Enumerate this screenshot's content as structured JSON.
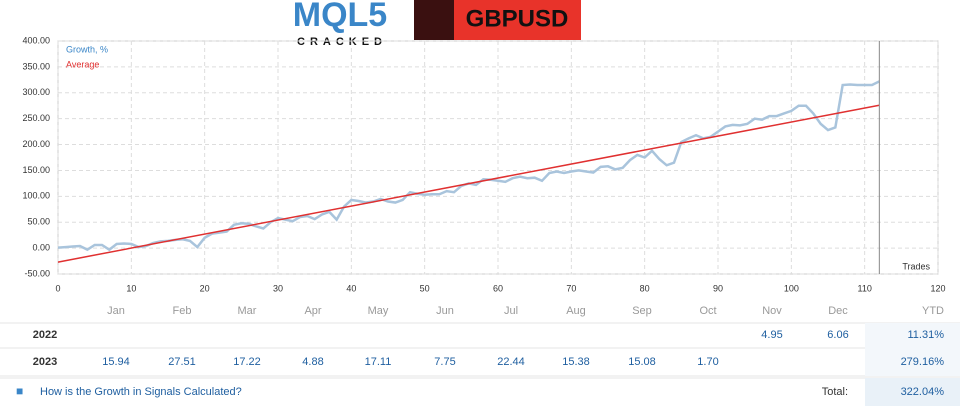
{
  "header": {
    "logo": "MQL5",
    "logo_sub": "CRACKED",
    "symbol": "GBPUSD"
  },
  "chart_data": {
    "type": "line",
    "x_label": "Trades",
    "x": [
      0,
      1,
      2,
      3,
      4,
      5,
      6,
      7,
      8,
      9,
      10,
      11,
      12,
      13,
      14,
      15,
      16,
      17,
      18,
      19,
      20,
      21,
      22,
      23,
      24,
      25,
      26,
      27,
      28,
      29,
      30,
      31,
      32,
      33,
      34,
      35,
      36,
      37,
      38,
      39,
      40,
      41,
      42,
      43,
      44,
      45,
      46,
      47,
      48,
      49,
      50,
      51,
      52,
      53,
      54,
      55,
      56,
      57,
      58,
      59,
      60,
      61,
      62,
      63,
      64,
      65,
      66,
      67,
      68,
      69,
      70,
      71,
      72,
      73,
      74,
      75,
      76,
      77,
      78,
      79,
      80,
      81,
      82,
      83,
      84,
      85,
      86,
      87,
      88,
      89,
      90,
      91,
      92,
      93,
      94,
      95,
      96,
      97,
      98,
      99,
      100,
      101,
      102,
      103,
      104,
      105,
      106,
      107,
      108,
      109,
      110,
      111,
      112
    ],
    "series": [
      {
        "name": "Growth, %",
        "color": "#a9c4dc",
        "values": [
          1,
          2,
          3,
          4,
          -3,
          6,
          6,
          -3,
          8,
          9,
          8,
          2,
          4,
          10,
          13,
          14,
          16,
          17,
          14,
          2,
          20,
          28,
          30,
          32,
          45,
          48,
          47,
          42,
          38,
          50,
          58,
          55,
          52,
          60,
          62,
          56,
          65,
          70,
          55,
          80,
          93,
          91,
          88,
          90,
          95,
          90,
          88,
          93,
          108,
          105,
          103,
          104,
          104,
          110,
          108,
          120,
          125,
          122,
          133,
          132,
          130,
          128,
          135,
          138,
          135,
          136,
          130,
          145,
          148,
          145,
          148,
          150,
          148,
          146,
          157,
          158,
          152,
          155,
          170,
          180,
          175,
          188,
          172,
          160,
          165,
          205,
          212,
          218,
          212,
          215,
          225,
          235,
          238,
          237,
          240,
          250,
          248,
          255,
          255,
          260,
          265,
          275,
          275,
          260,
          240,
          228,
          233,
          315,
          316,
          315,
          315,
          315,
          322
        ]
      }
    ],
    "average": {
      "name": "Average",
      "color": "#e03030",
      "x": [
        0,
        112
      ],
      "values": [
        -27,
        276
      ]
    },
    "xlim": [
      0,
      120
    ],
    "xticks": [
      0,
      10,
      20,
      30,
      40,
      50,
      60,
      70,
      80,
      90,
      100,
      110,
      120
    ],
    "ylim": [
      -50,
      400
    ],
    "yticks": [
      {
        "value": -50,
        "label": "-50.00"
      },
      {
        "value": 0,
        "label": "0.00"
      },
      {
        "value": 50,
        "label": "50.00"
      },
      {
        "value": 100,
        "label": "100.00"
      },
      {
        "value": 150,
        "label": "150.00"
      },
      {
        "value": 200,
        "label": "200.00"
      },
      {
        "value": 250,
        "label": "250.00"
      },
      {
        "value": 300,
        "label": "300.00"
      },
      {
        "value": 350,
        "label": "350.00"
      },
      {
        "value": 400,
        "label": "400.00"
      }
    ],
    "grid": true
  },
  "table": {
    "columns": [
      "Jan",
      "Feb",
      "Mar",
      "Apr",
      "May",
      "Jun",
      "Jul",
      "Aug",
      "Sep",
      "Oct",
      "Nov",
      "Dec",
      "YTD"
    ],
    "rows": [
      {
        "year": "2022",
        "cells": [
          "",
          "",
          "",
          "",
          "",
          "",
          "",
          "",
          "",
          "",
          "4.95",
          "6.06",
          "11.31%"
        ]
      },
      {
        "year": "2023",
        "cells": [
          "15.94",
          "27.51",
          "17.22",
          "4.88",
          "17.11",
          "7.75",
          "22.44",
          "15.38",
          "15.08",
          "1.70",
          "",
          "",
          "279.16%"
        ]
      }
    ]
  },
  "footer": {
    "link": "How is the Growth in Signals Calculated?",
    "total_label": "Total:",
    "total": "322.04%"
  }
}
